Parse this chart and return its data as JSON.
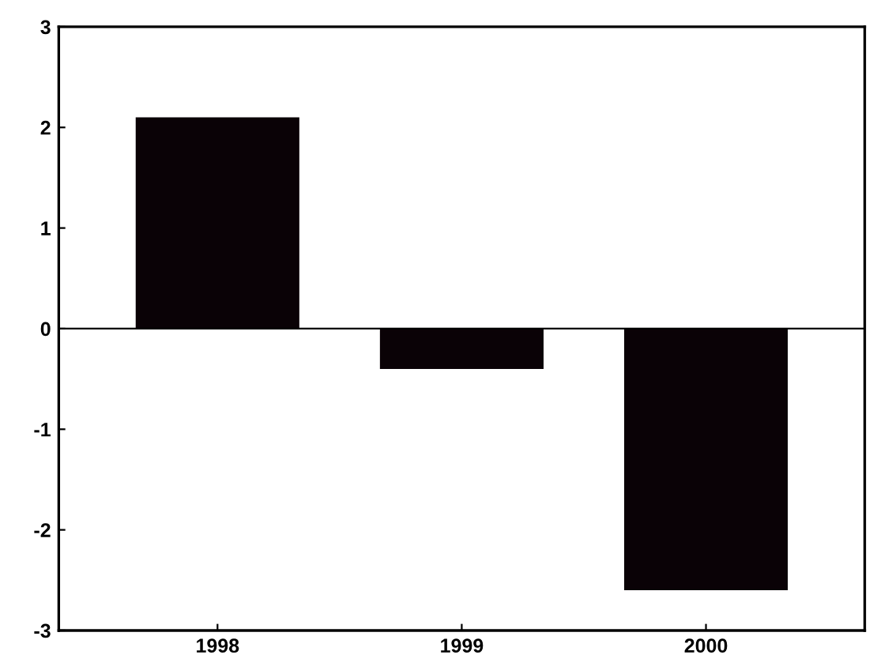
{
  "chart_data": {
    "type": "bar",
    "categories": [
      "1998",
      "1999",
      "2000"
    ],
    "values": [
      2.1,
      -0.4,
      -2.6
    ],
    "color": "#0a0206",
    "ylim": [
      -3,
      3
    ],
    "yticks": [
      -3,
      -2,
      -1,
      0,
      1,
      2,
      3
    ],
    "grid": false,
    "ref_lines": [
      {
        "axis": "y",
        "value": 0,
        "color": "#000000"
      }
    ]
  }
}
